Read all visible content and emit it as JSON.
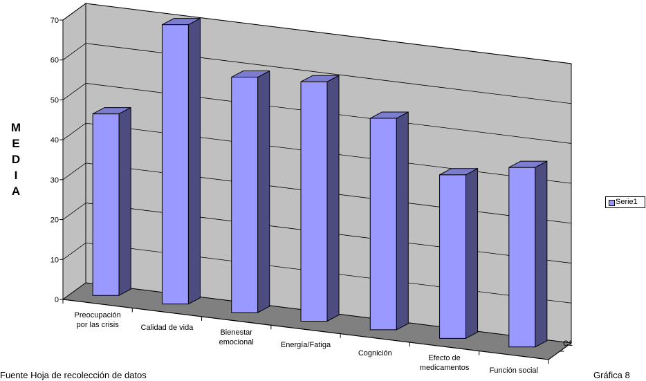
{
  "chart_data": {
    "type": "bar",
    "style": "3d-column",
    "categories": [
      "Preocupación por las crisis",
      "Calidad de vida",
      "Bienestar emocional",
      "Energía/Fatiga",
      "Cognición",
      "Efecto de medicamentos",
      "Función social"
    ],
    "category_lines": [
      [
        "Preocupación",
        "por las crisis"
      ],
      [
        "Calidad de vida"
      ],
      [
        "Bienestar",
        "emocional"
      ],
      [
        "Energía/Fatiga"
      ],
      [
        "Cognición"
      ],
      [
        "Efecto de",
        "medicamentos"
      ],
      [
        "Función social"
      ]
    ],
    "series": [
      {
        "name": "Serie1",
        "values": [
          45.5,
          70,
          59,
          60,
          53,
          41,
          45
        ]
      }
    ],
    "depth_label": "C1",
    "ylabel": "MEDIA",
    "ylabel_letters": [
      "M",
      "E",
      "D",
      "I",
      "A"
    ],
    "ylim": [
      0,
      70
    ],
    "yticks": [
      0,
      10,
      20,
      30,
      40,
      50,
      60,
      70
    ],
    "grid": true,
    "legend_position": "right",
    "colors": {
      "bar_front": "#9999ff",
      "bar_side": "#4c4c80",
      "bar_top": "#7c7cd0",
      "wall": "#c0c0c0",
      "floor": "#808080"
    }
  },
  "footer": {
    "source": "Fuente Hoja de recolección de datos",
    "figure_label": "Gráfica 8"
  }
}
